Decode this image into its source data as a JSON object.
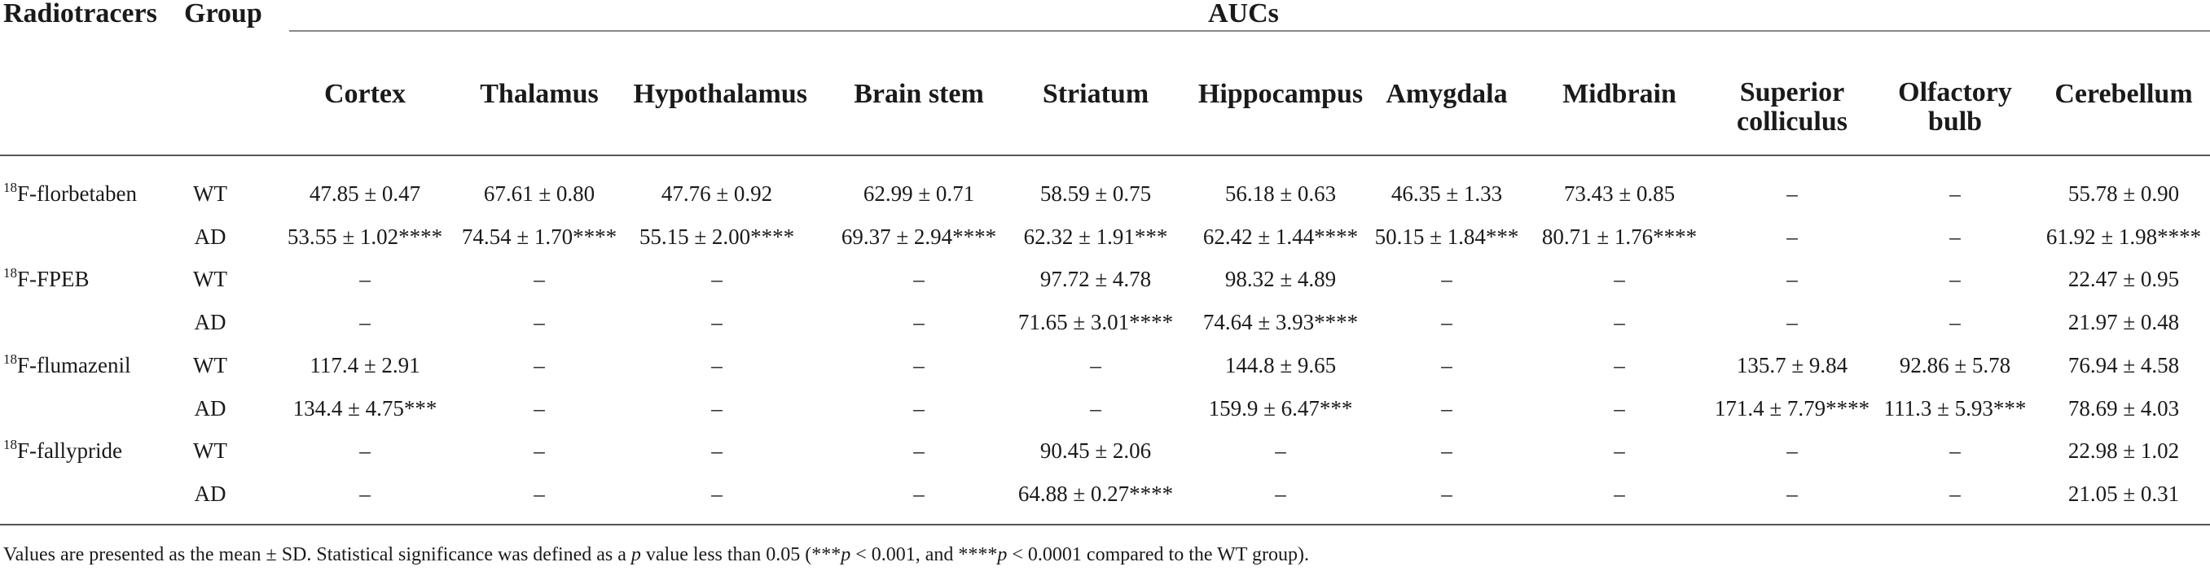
{
  "table": {
    "header_radiotracers": "Radiotracers",
    "header_group": "Group",
    "header_aucs": "AUCs",
    "regions": [
      "Cortex",
      "Thalamus",
      "Hypothalamus",
      "Brain stem",
      "Striatum",
      "Hippocampus",
      "Amygdala",
      "Midbrain",
      "Superior colliculus",
      "Olfactory bulb",
      "Cerebellum"
    ],
    "tracers": [
      {
        "mass": "18",
        "name": "F-florbetaben"
      },
      {
        "mass": "18",
        "name": "F-FPEB"
      },
      {
        "mass": "18",
        "name": "F-flumazenil"
      },
      {
        "mass": "18",
        "name": "F-fallypride"
      }
    ],
    "rows": [
      {
        "group": "WT",
        "cells": [
          "47.85 ± 0.47",
          "67.61 ± 0.80",
          "47.76 ± 0.92",
          "62.99 ± 0.71",
          "58.59 ± 0.75",
          "56.18 ± 0.63",
          "46.35 ± 1.33",
          "73.43 ± 0.85",
          "–",
          "–",
          "55.78 ± 0.90"
        ]
      },
      {
        "group": "AD",
        "cells": [
          "53.55 ± 1.02****",
          "74.54 ± 1.70****",
          "55.15 ± 2.00****",
          "69.37 ± 2.94****",
          "62.32 ± 1.91***",
          "62.42 ± 1.44****",
          "50.15 ± 1.84***",
          "80.71 ± 1.76****",
          "–",
          "–",
          "61.92 ± 1.98****"
        ]
      },
      {
        "group": "WT",
        "cells": [
          "–",
          "–",
          "–",
          "–",
          "97.72 ± 4.78",
          "98.32 ± 4.89",
          "–",
          "–",
          "–",
          "–",
          "22.47 ± 0.95"
        ]
      },
      {
        "group": "AD",
        "cells": [
          "–",
          "–",
          "–",
          "–",
          "71.65 ± 3.01****",
          "74.64 ± 3.93****",
          "–",
          "–",
          "–",
          "–",
          "21.97 ± 0.48"
        ]
      },
      {
        "group": "WT",
        "cells": [
          "117.4 ± 2.91",
          "–",
          "–",
          "–",
          "–",
          "144.8 ± 9.65",
          "–",
          "–",
          "135.7 ± 9.84",
          "92.86 ± 5.78",
          "76.94 ± 4.58"
        ]
      },
      {
        "group": "AD",
        "cells": [
          "134.4 ± 4.75***",
          "–",
          "–",
          "–",
          "–",
          "159.9 ± 6.47***",
          "–",
          "–",
          "171.4 ± 7.79****",
          "111.3 ± 5.93***",
          "78.69 ± 4.03"
        ]
      },
      {
        "group": "WT",
        "cells": [
          "–",
          "–",
          "–",
          "–",
          "90.45 ± 2.06",
          "–",
          "–",
          "–",
          "–",
          "–",
          "22.98 ± 1.02"
        ]
      },
      {
        "group": "AD",
        "cells": [
          "–",
          "–",
          "–",
          "–",
          "64.88 ± 0.27****",
          "–",
          "–",
          "–",
          "–",
          "–",
          "21.05 ± 0.31"
        ]
      }
    ]
  },
  "footnote": {
    "part1": "Values are presented as the mean ± SD. Statistical significance was defined as a ",
    "p1": "p",
    "part2": " value less than 0.05 (***",
    "p2": "p",
    "part3": " < 0.001, and ****",
    "p3": "p",
    "part4": " < 0.0001 compared to the WT group)."
  }
}
